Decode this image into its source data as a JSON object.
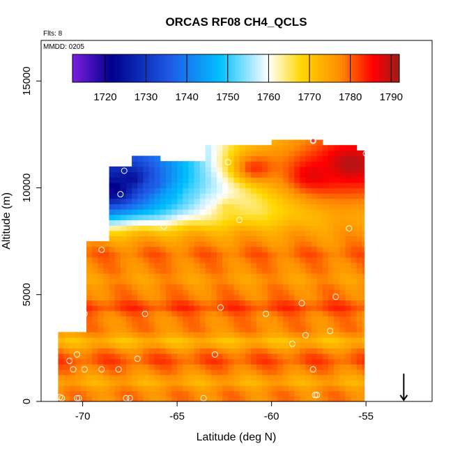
{
  "chart_data": {
    "type": "heatmap",
    "title": "ORCAS RF08 CH4_QCLS",
    "notes": {
      "flights": "Flts: 8",
      "date": "MMDD: 0205"
    },
    "xlabel": "Latitude (deg N)",
    "ylabel": "Altitude (m)",
    "xlim": [
      -72.2,
      -51.5
    ],
    "ylim": [
      0,
      16900
    ],
    "x_ticks": [
      -70,
      -65,
      -60,
      -55
    ],
    "x_tick_labels": [
      "-70",
      "-65",
      "-60",
      "-55"
    ],
    "y_ticks": [
      0,
      5000,
      10000,
      15000
    ],
    "y_tick_labels": [
      "0",
      "5000",
      "10000",
      "15000"
    ],
    "colorbar": {
      "range": [
        1712,
        1792
      ],
      "ticks": [
        1720,
        1730,
        1740,
        1750,
        1760,
        1770,
        1780,
        1790
      ],
      "tick_labels": [
        "1720",
        "1730",
        "1740",
        "1750",
        "1760",
        "1770",
        "1780",
        "1790"
      ],
      "colors": [
        "#7b1fe0",
        "#00008b",
        "#1e5be8",
        "#00bfff",
        "#ffffff",
        "#ffd700",
        "#ff8c00",
        "#ff0000",
        "#9b1b1b"
      ],
      "color_positions": [
        0,
        0.12,
        0.3,
        0.45,
        0.6,
        0.7,
        0.82,
        0.92,
        1
      ]
    },
    "field": {
      "lat_step": 0.3,
      "alt_step": 250,
      "columns": [
        {
          "lat_start": -71.3,
          "lat_end": -69.8,
          "alt_top": 3200
        },
        {
          "lat_start": -69.8,
          "lat_end": -68.6,
          "alt_top": 7400
        },
        {
          "lat_start": -68.6,
          "lat_end": -67.4,
          "alt_top": 10900
        },
        {
          "lat_start": -67.4,
          "lat_end": -63.5,
          "alt_top": 11300
        },
        {
          "lat_start": -63.5,
          "lat_end": -60.0,
          "alt_top": 12000
        },
        {
          "lat_start": -60.0,
          "lat_end": -57.0,
          "alt_top": 12100
        },
        {
          "lat_start": -57.0,
          "lat_end": -55.1,
          "alt_top": 11800
        }
      ],
      "upper_layer": [
        {
          "lat": -68.5,
          "alt": 9800,
          "value": 1718
        },
        {
          "lat": -67.5,
          "alt": 10300,
          "value": 1722
        },
        {
          "lat": -66.5,
          "alt": 10000,
          "value": 1735
        },
        {
          "lat": -65.5,
          "alt": 9600,
          "value": 1745
        },
        {
          "lat": -64.5,
          "alt": 9500,
          "value": 1752
        },
        {
          "lat": -63.5,
          "alt": 9300,
          "value": 1758
        },
        {
          "lat": -62.5,
          "alt": 9000,
          "value": 1766
        },
        {
          "lat": -61.0,
          "alt": 10800,
          "value": 1784
        },
        {
          "lat": -58.0,
          "alt": 10500,
          "value": 1788
        },
        {
          "lat": -56.0,
          "alt": 11000,
          "value": 1791
        }
      ],
      "lower_value": 1778,
      "layer_bands": [
        {
          "alt": 800,
          "value": 1774
        },
        {
          "alt": 1800,
          "value": 1781
        },
        {
          "alt": 2700,
          "value": 1772
        },
        {
          "alt": 4300,
          "value": 1782
        },
        {
          "alt": 5600,
          "value": 1776
        },
        {
          "alt": 6800,
          "value": 1780
        }
      ]
    },
    "points": [
      {
        "x": -71.2,
        "y": 200
      },
      {
        "x": -71.1,
        "y": 150
      },
      {
        "x": -70.3,
        "y": 150
      },
      {
        "x": -70.2,
        "y": 150
      },
      {
        "x": -70.7,
        "y": 1900
      },
      {
        "x": -70.5,
        "y": 1500
      },
      {
        "x": -70.3,
        "y": 2200
      },
      {
        "x": -69.9,
        "y": 1500
      },
      {
        "x": -69.0,
        "y": 1500
      },
      {
        "x": -68.1,
        "y": 1500
      },
      {
        "x": -67.7,
        "y": 150
      },
      {
        "x": -67.5,
        "y": 150
      },
      {
        "x": -67.1,
        "y": 2000
      },
      {
        "x": -69.9,
        "y": 4100
      },
      {
        "x": -66.7,
        "y": 4100
      },
      {
        "x": -63.6,
        "y": 150
      },
      {
        "x": -63.0,
        "y": 2200
      },
      {
        "x": -62.7,
        "y": 4400
      },
      {
        "x": -60.3,
        "y": 4100
      },
      {
        "x": -58.9,
        "y": 2700
      },
      {
        "x": -58.2,
        "y": 3100
      },
      {
        "x": -57.8,
        "y": 1500
      },
      {
        "x": -57.7,
        "y": 300
      },
      {
        "x": -57.6,
        "y": 300
      },
      {
        "x": -56.9,
        "y": 3300
      },
      {
        "x": -56.6,
        "y": 4900
      },
      {
        "x": -58.4,
        "y": 4600
      },
      {
        "x": -55.9,
        "y": 8100
      },
      {
        "x": -55.0,
        "y": 11600
      },
      {
        "x": -57.8,
        "y": 12200
      },
      {
        "x": -62.3,
        "y": 11200
      },
      {
        "x": -61.7,
        "y": 8500
      },
      {
        "x": -65.7,
        "y": 8200
      },
      {
        "x": -67.8,
        "y": 10800
      },
      {
        "x": -68.0,
        "y": 9700
      },
      {
        "x": -69.0,
        "y": 7100
      }
    ],
    "flagged_point": {
      "x": -57.8,
      "y": 12200
    },
    "marker": {
      "x": -53.0,
      "y": 600,
      "glyph": "arrow-down"
    },
    "grid": false,
    "legend": "colorbar top"
  }
}
